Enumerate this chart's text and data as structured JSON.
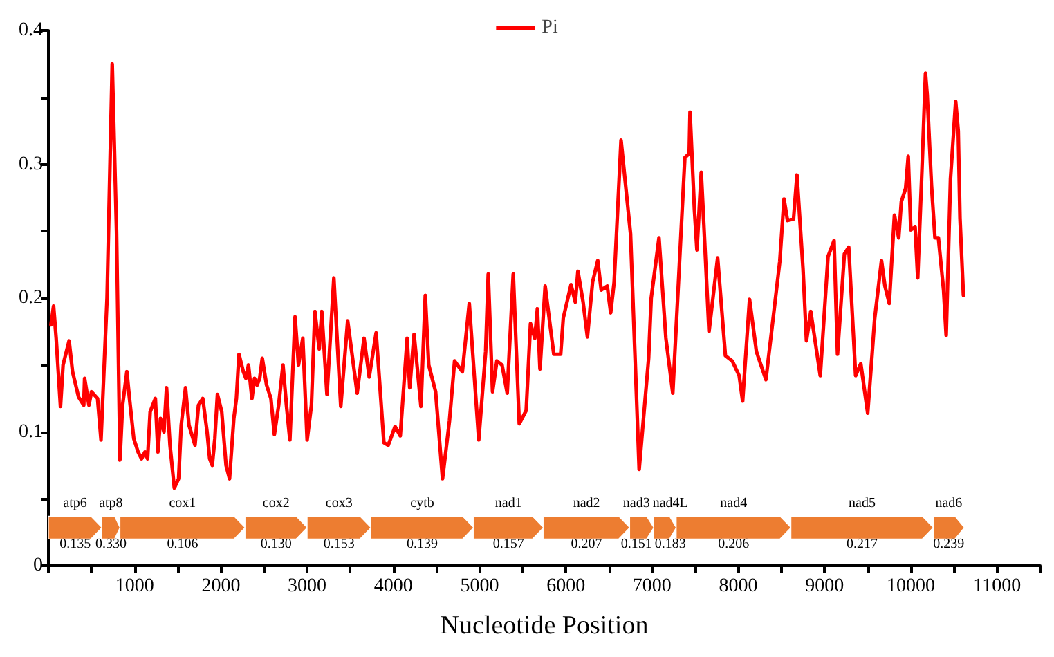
{
  "chart_data": {
    "type": "line",
    "xlabel": "Nucleotide Position",
    "legend": "top",
    "grid": false,
    "marker": "none",
    "line_style": "solid",
    "xlim": [
      0,
      11500
    ],
    "xticks": [
      {
        "value": 0,
        "label": null
      },
      {
        "value": 500,
        "label": null
      },
      1000,
      {
        "value": 1500,
        "label": null
      },
      2000,
      {
        "value": 2500,
        "label": null
      },
      3000,
      {
        "value": 3500,
        "label": null
      },
      4000,
      {
        "value": 4500,
        "label": null
      },
      5000,
      {
        "value": 5500,
        "label": null
      },
      6000,
      {
        "value": 6500,
        "label": null
      },
      7000,
      {
        "value": 7500,
        "label": null
      },
      8000,
      {
        "value": 8500,
        "label": null
      },
      9000,
      {
        "value": 9500,
        "label": null
      },
      10000,
      {
        "value": 10500,
        "label": null
      },
      11000,
      {
        "value": 11500,
        "label": null
      }
    ],
    "ylim": [
      0,
      0.4
    ],
    "yticks": [
      0,
      {
        "value": 0.05,
        "label": null
      },
      0.1,
      {
        "value": 0.15,
        "label": null
      },
      0.2,
      {
        "value": 0.25,
        "label": null
      },
      0.3,
      {
        "value": 0.35,
        "label": null
      },
      0.4
    ],
    "series": [
      {
        "name": "Pi",
        "color": "#ff0000",
        "x": [
          30,
          60,
          90,
          140,
          170,
          240,
          280,
          350,
          410,
          420,
          470,
          500,
          570,
          610,
          680,
          740,
          790,
          830,
          860,
          910,
          940,
          990,
          1040,
          1080,
          1120,
          1150,
          1180,
          1210,
          1240,
          1270,
          1300,
          1340,
          1370,
          1410,
          1460,
          1510,
          1540,
          1590,
          1630,
          1700,
          1740,
          1790,
          1840,
          1870,
          1900,
          1930,
          1960,
          2010,
          2060,
          2100,
          2150,
          2180,
          2210,
          2260,
          2290,
          2320,
          2360,
          2390,
          2420,
          2450,
          2480,
          2530,
          2580,
          2620,
          2670,
          2720,
          2760,
          2800,
          2860,
          2900,
          2950,
          3000,
          3050,
          3090,
          3140,
          3170,
          3230,
          3310,
          3390,
          3470,
          3580,
          3660,
          3720,
          3800,
          3890,
          3940,
          4020,
          4080,
          4160,
          4190,
          4240,
          4320,
          4370,
          4410,
          4490,
          4570,
          4650,
          4710,
          4800,
          4880,
          4990,
          5070,
          5100,
          5150,
          5200,
          5260,
          5320,
          5390,
          5460,
          5540,
          5590,
          5640,
          5670,
          5700,
          5760,
          5860,
          5940,
          5970,
          6060,
          6110,
          6140,
          6200,
          6250,
          6310,
          6370,
          6410,
          6480,
          6520,
          6560,
          6640,
          6750,
          6850,
          6960,
          6990,
          7080,
          7160,
          7240,
          7380,
          7430,
          7440,
          7490,
          7520,
          7570,
          7600,
          7660,
          7760,
          7850,
          7930,
          8010,
          8050,
          8130,
          8210,
          8320,
          8480,
          8530,
          8570,
          8640,
          8680,
          8750,
          8790,
          8840,
          8950,
          9040,
          9110,
          9150,
          9230,
          9280,
          9360,
          9420,
          9500,
          9550,
          9580,
          9660,
          9700,
          9750,
          9810,
          9860,
          9890,
          9940,
          9970,
          10000,
          10050,
          10080,
          10130,
          10170,
          10190,
          10240,
          10280,
          10320,
          10380,
          10410,
          10460,
          10520,
          10550,
          10570,
          10610
        ],
        "values": [
          0.18,
          0.194,
          0.17,
          0.119,
          0.15,
          0.168,
          0.145,
          0.126,
          0.12,
          0.14,
          0.12,
          0.13,
          0.125,
          0.094,
          0.2,
          0.375,
          0.25,
          0.079,
          0.12,
          0.145,
          0.125,
          0.095,
          0.085,
          0.08,
          0.085,
          0.08,
          0.115,
          0.12,
          0.125,
          0.085,
          0.11,
          0.1,
          0.133,
          0.09,
          0.058,
          0.065,
          0.105,
          0.133,
          0.105,
          0.09,
          0.12,
          0.125,
          0.1,
          0.08,
          0.075,
          0.095,
          0.128,
          0.115,
          0.075,
          0.065,
          0.11,
          0.125,
          0.158,
          0.145,
          0.14,
          0.15,
          0.125,
          0.14,
          0.135,
          0.14,
          0.155,
          0.135,
          0.125,
          0.098,
          0.12,
          0.15,
          0.12,
          0.094,
          0.186,
          0.15,
          0.17,
          0.094,
          0.12,
          0.19,
          0.162,
          0.19,
          0.128,
          0.215,
          0.119,
          0.183,
          0.129,
          0.17,
          0.141,
          0.174,
          0.092,
          0.09,
          0.104,
          0.097,
          0.17,
          0.133,
          0.173,
          0.119,
          0.202,
          0.15,
          0.13,
          0.065,
          0.108,
          0.153,
          0.145,
          0.196,
          0.094,
          0.16,
          0.218,
          0.13,
          0.153,
          0.15,
          0.129,
          0.218,
          0.106,
          0.116,
          0.181,
          0.17,
          0.192,
          0.147,
          0.209,
          0.158,
          0.158,
          0.185,
          0.21,
          0.197,
          0.22,
          0.197,
          0.171,
          0.212,
          0.228,
          0.206,
          0.209,
          0.189,
          0.212,
          0.318,
          0.248,
          0.072,
          0.155,
          0.2,
          0.245,
          0.17,
          0.129,
          0.305,
          0.308,
          0.339,
          0.267,
          0.236,
          0.294,
          0.255,
          0.175,
          0.23,
          0.157,
          0.153,
          0.142,
          0.123,
          0.199,
          0.16,
          0.139,
          0.227,
          0.274,
          0.258,
          0.259,
          0.292,
          0.222,
          0.168,
          0.19,
          0.142,
          0.231,
          0.243,
          0.158,
          0.233,
          0.238,
          0.142,
          0.151,
          0.114,
          0.157,
          0.184,
          0.228,
          0.209,
          0.196,
          0.262,
          0.245,
          0.272,
          0.282,
          0.306,
          0.251,
          0.253,
          0.215,
          0.297,
          0.368,
          0.352,
          0.284,
          0.245,
          0.245,
          0.206,
          0.172,
          0.289,
          0.347,
          0.325,
          0.26,
          0.202
        ]
      }
    ],
    "bands": [
      {
        "axis": "x",
        "from": 0,
        "to": 620,
        "label": "atp6",
        "color": "#ed7d31"
      },
      {
        "axis": "x",
        "from": 620,
        "to": 830,
        "label": "atp8",
        "color": "#ed7d31"
      },
      {
        "axis": "x",
        "from": 830,
        "to": 2280,
        "label": "cox1",
        "color": "#ed7d31"
      },
      {
        "axis": "x",
        "from": 2280,
        "to": 3000,
        "label": "cox2",
        "color": "#ed7d31"
      },
      {
        "axis": "x",
        "from": 3000,
        "to": 3740,
        "label": "cox3",
        "color": "#ed7d31"
      },
      {
        "axis": "x",
        "from": 3740,
        "to": 4930,
        "label": "cytb",
        "color": "#ed7d31"
      },
      {
        "axis": "x",
        "from": 4930,
        "to": 5740,
        "label": "nad1",
        "color": "#ed7d31"
      },
      {
        "axis": "x",
        "from": 5740,
        "to": 6740,
        "label": "nad2",
        "color": "#ed7d31"
      },
      {
        "axis": "x",
        "from": 6740,
        "to": 7020,
        "label": "nad3",
        "color": "#ed7d31"
      },
      {
        "axis": "x",
        "from": 7020,
        "to": 7280,
        "label": "nad4L",
        "color": "#ed7d31"
      },
      {
        "axis": "x",
        "from": 7280,
        "to": 8610,
        "label": "nad4",
        "color": "#ed7d31"
      },
      {
        "axis": "x",
        "from": 8610,
        "to": 10260,
        "label": "nad5",
        "color": "#ed7d31"
      },
      {
        "axis": "x",
        "from": 10260,
        "to": 10620,
        "label": "nad6",
        "color": "#ed7d31"
      }
    ],
    "annotations": [
      {
        "text": "0.135",
        "x": 310,
        "y": 0.016
      },
      {
        "text": "0.330",
        "x": 725,
        "y": 0.016
      },
      {
        "text": "0.106",
        "x": 1555,
        "y": 0.016
      },
      {
        "text": "0.130",
        "x": 2640,
        "y": 0.016
      },
      {
        "text": "0.153",
        "x": 3370,
        "y": 0.016
      },
      {
        "text": "0.139",
        "x": 4335,
        "y": 0.016
      },
      {
        "text": "0.157",
        "x": 5335,
        "y": 0.016
      },
      {
        "text": "0.207",
        "x": 6240,
        "y": 0.016
      },
      {
        "text": "0.151",
        "x": 6880,
        "y": 0.016
      },
      {
        "text": "0.183",
        "x": 7150,
        "y": 0.016
      },
      {
        "text": "0.206",
        "x": 7945,
        "y": 0.016
      },
      {
        "text": "0.217",
        "x": 9435,
        "y": 0.016
      },
      {
        "text": "0.239",
        "x": 10440,
        "y": 0.016
      }
    ]
  }
}
